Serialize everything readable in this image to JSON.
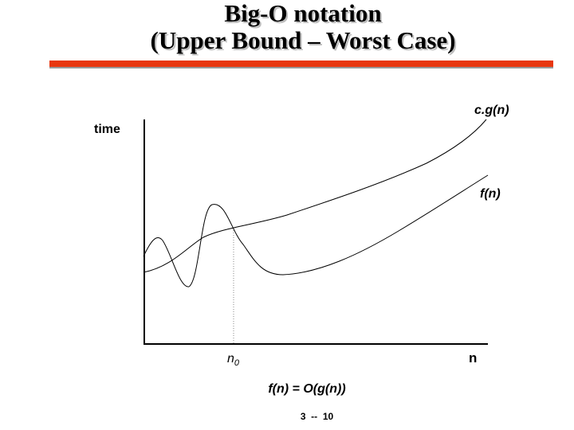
{
  "slide": {
    "title_line1": "Big-O notation",
    "title_line2": "(Upper Bound – Worst Case)",
    "formula": "f(n) = O(g(n))",
    "page_number": "3  --  10",
    "accent_color": "#e8370f"
  },
  "diagram": {
    "y_axis_label": "time",
    "x_axis_label": "n",
    "curve_upper_label": "c.g(n)",
    "curve_lower_label": "f(n)",
    "threshold_label": "n",
    "threshold_subscript": "0"
  }
}
